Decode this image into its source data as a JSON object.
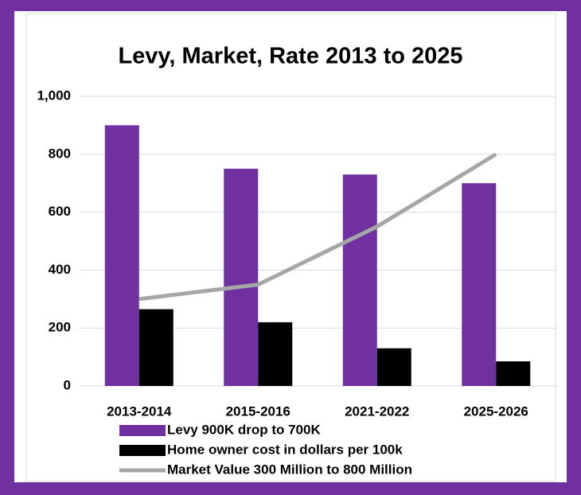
{
  "chart_data": {
    "type": "bar",
    "title": "Levy, Market, Rate 2013 to 2025",
    "categories": [
      "2013-2014",
      "2015-2016",
      "2021-2022",
      "2025-2026"
    ],
    "series": [
      {
        "name": "Levy 900K drop to 700K",
        "color": "#7030a0",
        "type": "bar",
        "values": [
          900,
          750,
          730,
          700
        ]
      },
      {
        "name": "Home owner cost in dollars per 100k",
        "color": "#000000",
        "type": "bar",
        "values": [
          265,
          220,
          130,
          85
        ]
      },
      {
        "name": "Market Value 300 Million to 800 Million",
        "color": "#a6a6a6",
        "type": "line",
        "values": [
          300,
          350,
          550,
          800
        ]
      }
    ],
    "ylim": [
      0,
      1000
    ],
    "yticks": [
      0,
      200,
      400,
      600,
      800,
      {
        "value": 1000,
        "label": "1,000"
      }
    ],
    "grid": true,
    "legend": "bottom"
  }
}
